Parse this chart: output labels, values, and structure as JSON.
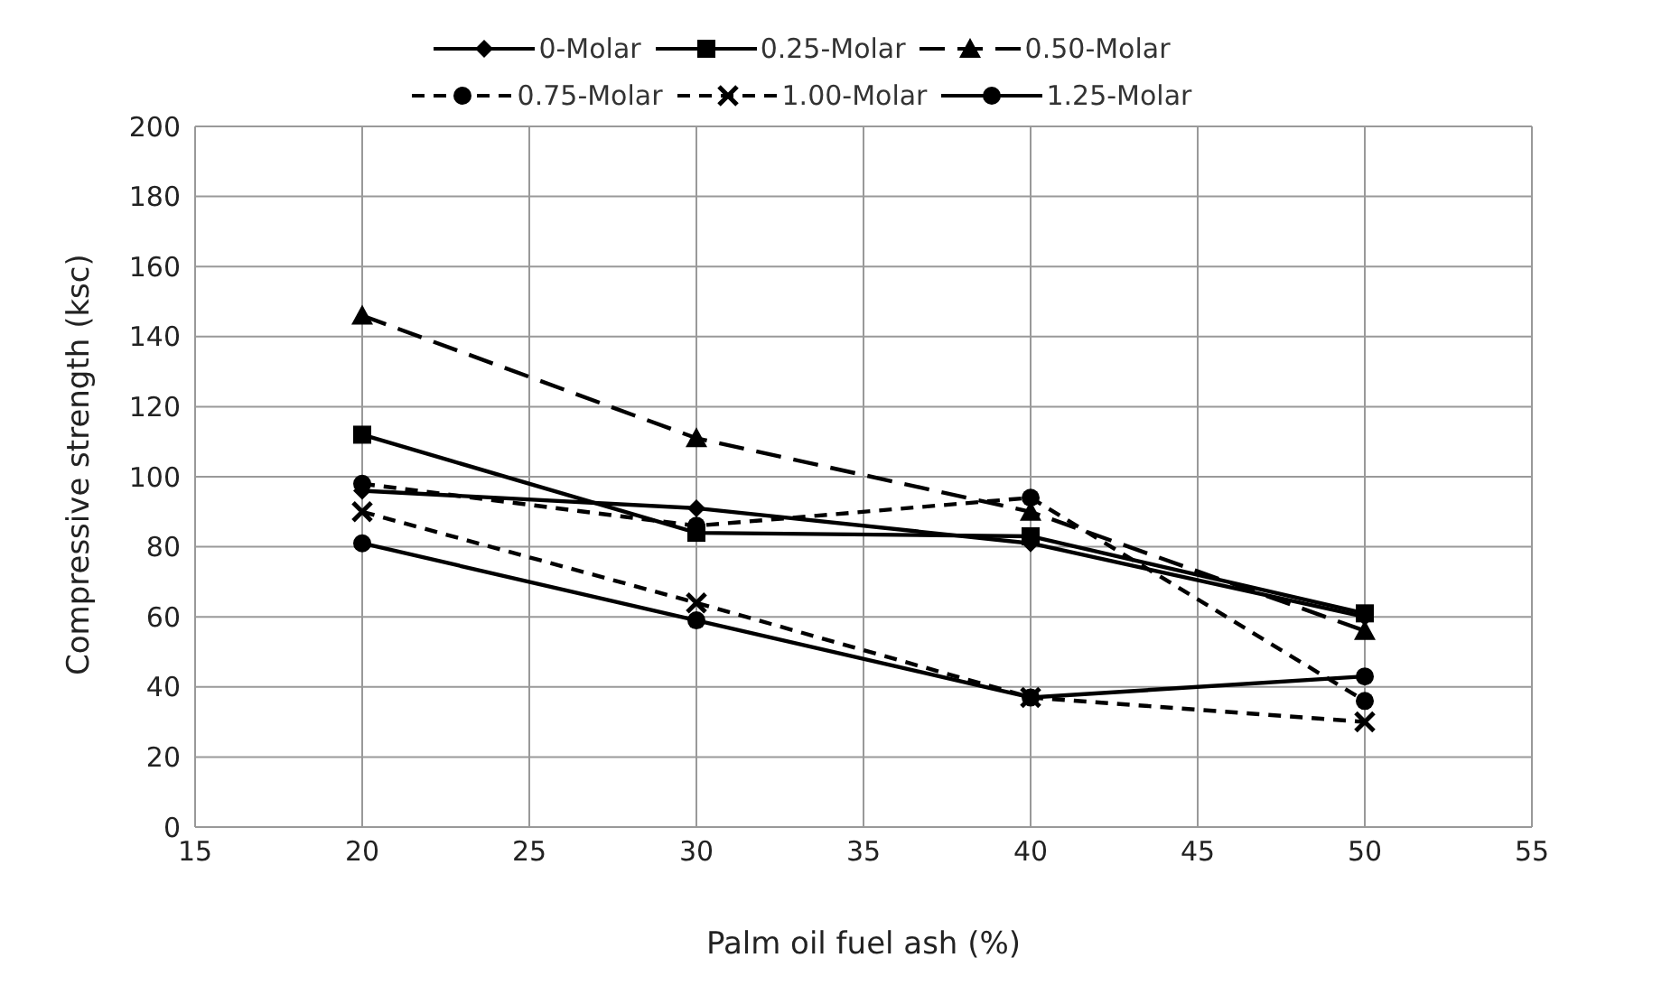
{
  "chart_data": {
    "type": "line",
    "xlabel": "Palm oil fuel ash (%)",
    "ylabel": "Compressive strength (ksc)",
    "x": [
      20,
      30,
      40,
      50
    ],
    "series": [
      {
        "name": "0-Molar",
        "color": "#000000",
        "marker": "diamond",
        "line_style": "solid",
        "values": [
          96,
          91,
          81,
          60
        ]
      },
      {
        "name": "0.25-Molar",
        "color": "#000000",
        "marker": "square",
        "line_style": "solid",
        "values": [
          112,
          84,
          83,
          61
        ]
      },
      {
        "name": "0.50-Molar",
        "color": "#000000",
        "marker": "triangle",
        "line_style": "dashed",
        "values": [
          146,
          111,
          90,
          56
        ]
      },
      {
        "name": "0.75-Molar",
        "color": "#000000",
        "marker": "circle",
        "line_style": "dotted",
        "values": [
          98,
          86,
          94,
          36
        ]
      },
      {
        "name": "1.00-Molar",
        "color": "#000000",
        "marker": "cross",
        "line_style": "dotted",
        "values": [
          90,
          64,
          37,
          30
        ]
      },
      {
        "name": "1.25-Molar",
        "color": "#000000",
        "marker": "circle",
        "line_style": "solid",
        "values": [
          81,
          59,
          37,
          43
        ]
      }
    ],
    "xlim": [
      15,
      55
    ],
    "xticks": [
      15,
      20,
      25,
      30,
      35,
      40,
      45,
      50,
      55
    ],
    "ylim": [
      0,
      200
    ],
    "yticks": [
      0,
      20,
      40,
      60,
      80,
      100,
      120,
      140,
      160,
      180,
      200
    ],
    "grid": true,
    "legend": "top"
  }
}
